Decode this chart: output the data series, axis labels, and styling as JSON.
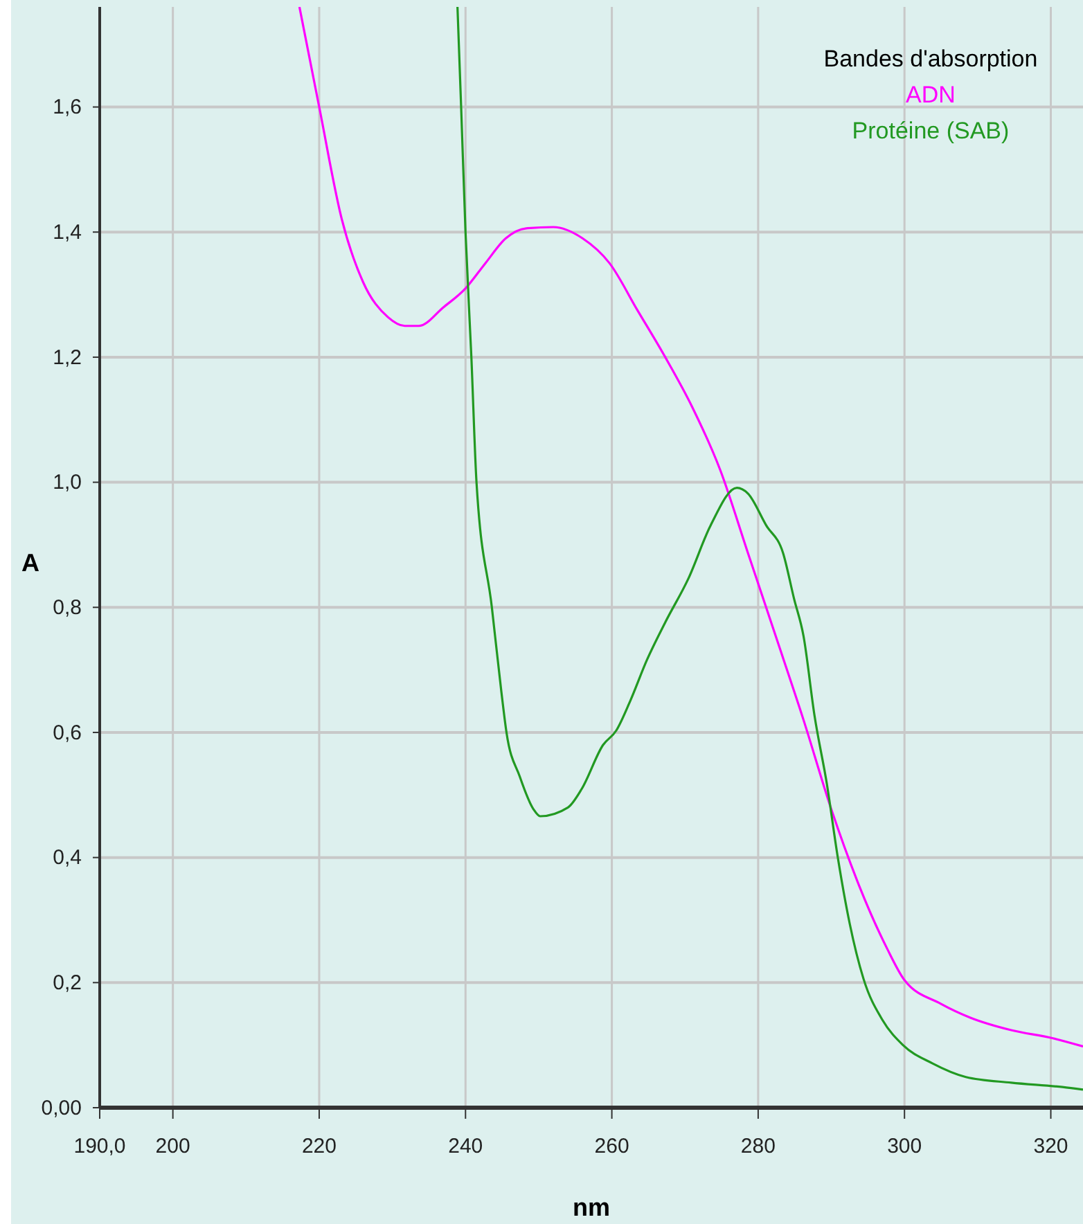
{
  "chart_data": {
    "type": "line",
    "xlabel": "nm",
    "ylabel": "A",
    "legend_title": "Bandes d'absorption",
    "legend": "top right",
    "grid": true,
    "line_style": "solid",
    "xlim": [
      190,
      324.4
    ],
    "ylim": [
      0,
      1.76
    ],
    "xticks": [
      {
        "value": 190,
        "label": "190,0"
      },
      200,
      220,
      240,
      260,
      280,
      300,
      320
    ],
    "yticks": [
      {
        "value": 0,
        "label": "0,00"
      },
      {
        "value": 0.2,
        "label": "0,2"
      },
      {
        "value": 0.4,
        "label": "0,4"
      },
      {
        "value": 0.6,
        "label": "0,6"
      },
      {
        "value": 0.8,
        "label": "0,8"
      },
      {
        "value": 1.0,
        "label": "1,0"
      },
      {
        "value": 1.2,
        "label": "1,2"
      },
      {
        "value": 1.4,
        "label": "1,4"
      },
      {
        "value": 1.6,
        "label": "1,6"
      }
    ],
    "series": [
      {
        "name": "ADN",
        "color": "#ff00ff",
        "x": [
          217.3,
          220,
          223.1,
          226,
          229.4,
          231.7,
          233.6,
          237,
          240,
          242.7,
          245.5,
          248.3,
          252,
          256,
          259.7,
          263.5,
          267.3,
          271,
          274.8,
          278.6,
          282.4,
          286.2,
          290,
          293.8,
          297.6,
          300,
          305,
          309,
          314.6,
          320.3,
          324.4
        ],
        "values": [
          1.76,
          1.6,
          1.42,
          1.32,
          1.264,
          1.25,
          1.25,
          1.28,
          1.31,
          1.35,
          1.39,
          1.406,
          1.408,
          1.39,
          1.35,
          1.275,
          1.2,
          1.12,
          1.02,
          0.887,
          0.754,
          0.62,
          0.477,
          0.355,
          0.255,
          0.204,
          0.166,
          0.144,
          0.124,
          0.111,
          0.098
        ]
      },
      {
        "name": "Protéine (SAB)",
        "color": "#229922",
        "x": [
          238.9,
          239.4,
          240,
          240.8,
          241.5,
          243.6,
          244.9,
          245.6,
          247.4,
          249.3,
          250.2,
          254,
          255.9,
          258.8,
          260.6,
          262.5,
          264.8,
          267.3,
          270.5,
          273.5,
          277.1,
          278.6,
          281.1,
          283.4,
          284.9,
          286.2,
          287.7,
          289.4,
          290.9,
          292.5,
          294.4,
          297,
          299.8,
          303.8,
          308.4,
          314.6,
          321.6,
          324.4
        ],
        "values": [
          1.76,
          1.6,
          1.4,
          1.2,
          1.0,
          0.8,
          0.665,
          0.6,
          0.53,
          0.477,
          0.466,
          0.48,
          0.51,
          0.58,
          0.603,
          0.65,
          0.716,
          0.776,
          0.847,
          0.931,
          0.991,
          0.982,
          0.931,
          0.887,
          0.814,
          0.754,
          0.627,
          0.517,
          0.399,
          0.295,
          0.206,
          0.14,
          0.1,
          0.071,
          0.049,
          0.04,
          0.033,
          0.029
        ]
      }
    ]
  }
}
